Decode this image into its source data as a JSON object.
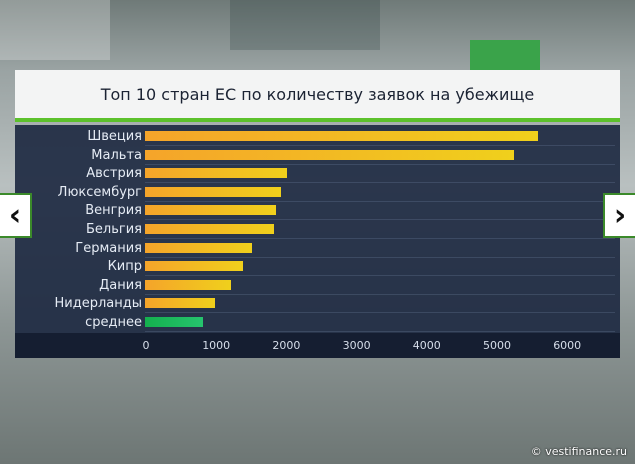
{
  "chart_data": {
    "type": "bar",
    "orientation": "horizontal",
    "title": "Топ 10 стран ЕС по количеству заявок на убежище",
    "categories": [
      "Швеция",
      "Мальта",
      "Австрия",
      "Люксембург",
      "Венгрия",
      "Бельгия",
      "Германия",
      "Кипр",
      "Дания",
      "Нидерланды",
      "среднее"
    ],
    "values": [
      5600,
      5250,
      2020,
      1940,
      1870,
      1840,
      1530,
      1400,
      1230,
      1000,
      820
    ],
    "highlight": "среднее",
    "xticks": [
      "0",
      "1000",
      "2000",
      "3000",
      "4000",
      "5000",
      "6000"
    ],
    "xlim": [
      0,
      6650
    ],
    "colors": {
      "bar": "#f5a42a",
      "average": "#14b04e",
      "accent": "#5cc12c"
    }
  },
  "nav": {
    "prev": "‹",
    "next": "›"
  },
  "watermark": "© vestifinance.ru"
}
